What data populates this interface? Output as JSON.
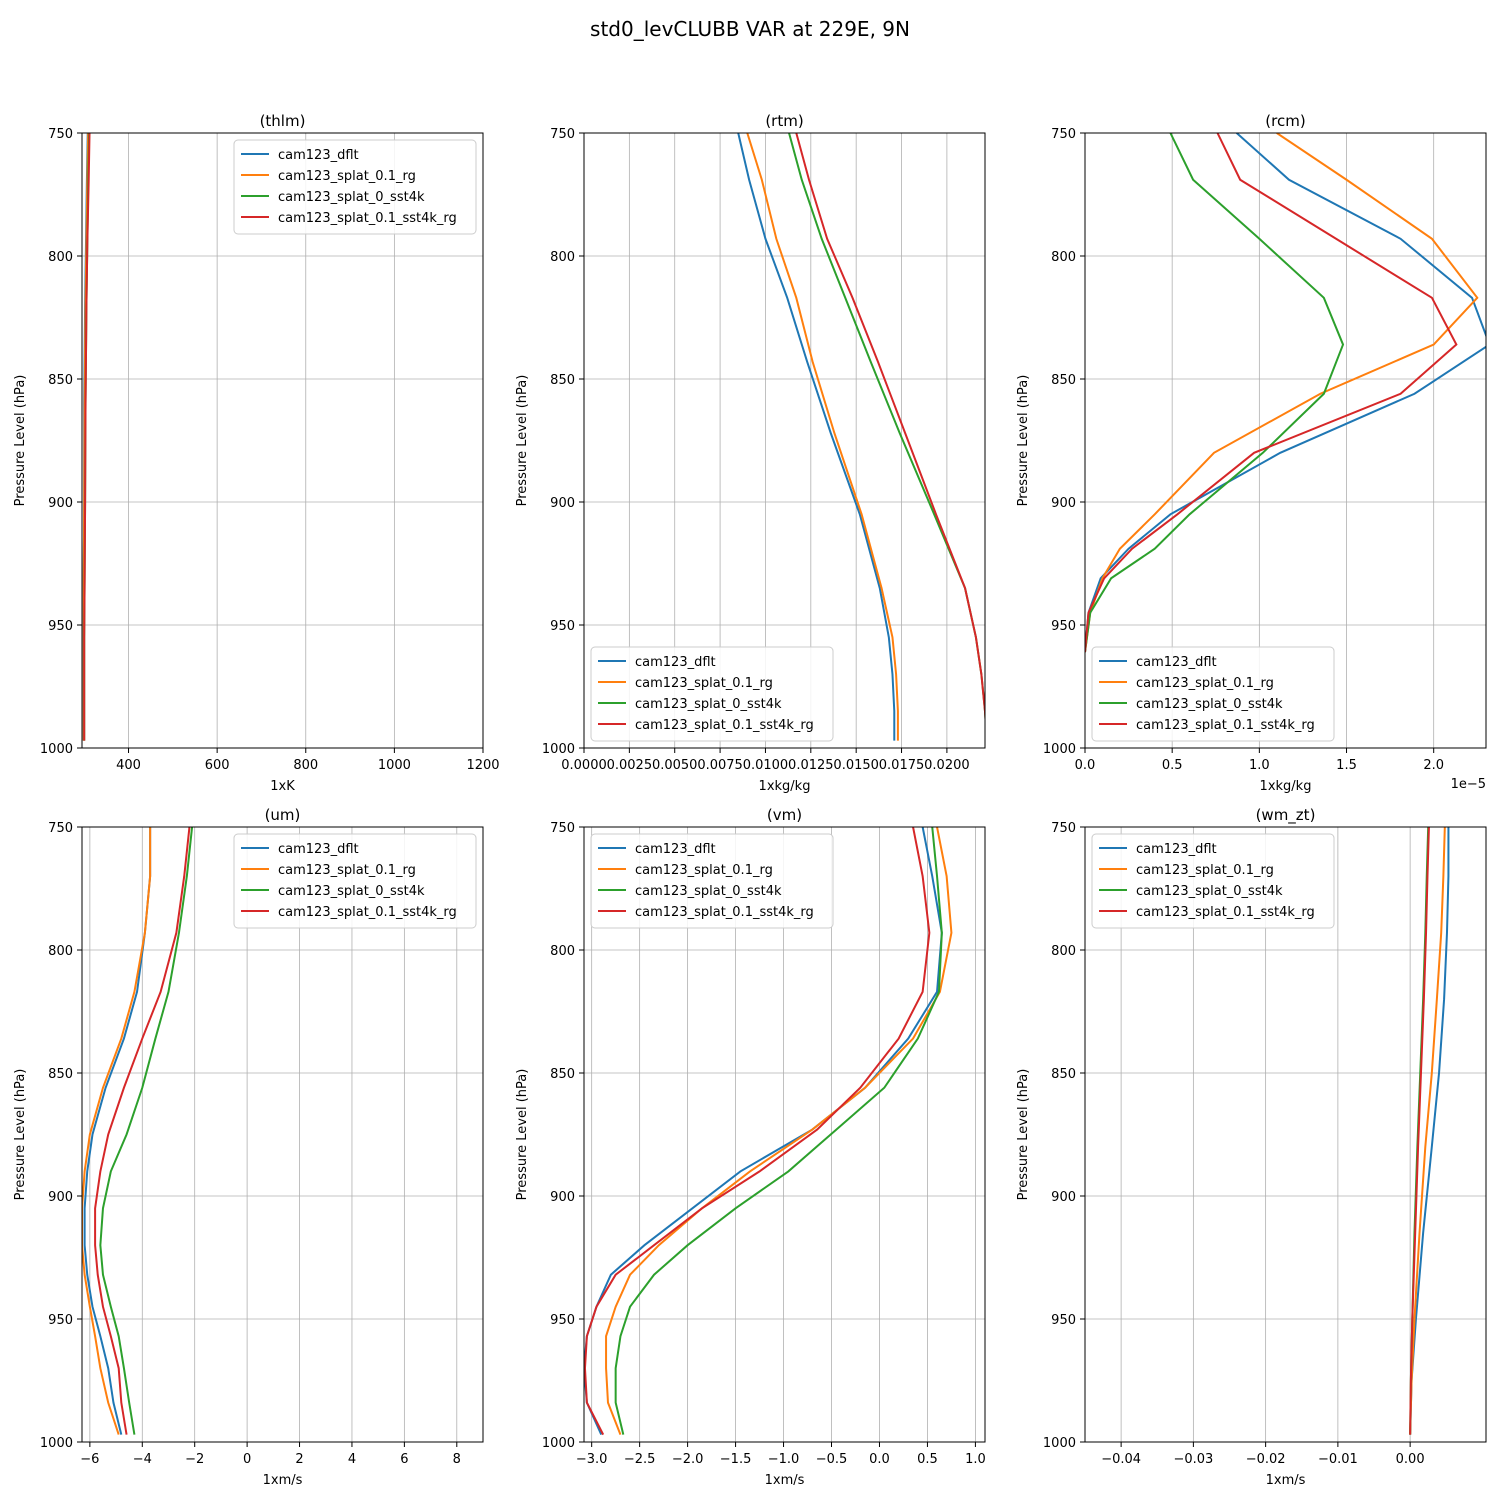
{
  "figure": {
    "suptitle": "std0_levCLUBB VAR at 229E, 9N"
  },
  "series_colors": [
    "#1f77b4",
    "#ff7f0e",
    "#2ca02c",
    "#d62728"
  ],
  "chart_data": [
    {
      "type": "line",
      "title": "(thlm)",
      "xlabel": "1xK",
      "ylabel": "Pressure Level (hPa)",
      "xlim": [
        295,
        1200
      ],
      "ylim": [
        1000,
        750
      ],
      "xticks": [
        400,
        600,
        800,
        1000,
        1200
      ],
      "xtick_labels": [
        "400",
        "600",
        "800",
        "1000",
        "1200"
      ],
      "yticks": [
        750,
        800,
        850,
        900,
        950,
        1000
      ],
      "ytick_labels": [
        "750",
        "800",
        "850",
        "900",
        "950",
        "1000"
      ],
      "offset_text": "",
      "grid": true,
      "legend": "upper right",
      "series": [
        {
          "name": "cam123_dflt",
          "x": [
            308,
            306,
            304,
            302,
            300,
            300,
            299,
            299,
            299,
            299
          ],
          "y": [
            750,
            770,
            795,
            820,
            860,
            900,
            930,
            955,
            980,
            997
          ]
        },
        {
          "name": "cam123_splat_0.1_rg",
          "x": [
            309,
            307,
            305,
            303,
            301,
            300,
            299,
            299,
            299,
            299
          ],
          "y": [
            750,
            770,
            795,
            820,
            860,
            900,
            930,
            955,
            980,
            997
          ]
        },
        {
          "name": "cam123_splat_0_sst4k",
          "x": [
            311,
            309,
            307,
            305,
            303,
            302,
            301,
            300,
            300,
            300
          ],
          "y": [
            750,
            770,
            795,
            820,
            860,
            900,
            930,
            955,
            980,
            997
          ]
        },
        {
          "name": "cam123_splat_0.1_sst4k_rg",
          "x": [
            312,
            310,
            307,
            305,
            303,
            302,
            301,
            300,
            300,
            300
          ],
          "y": [
            750,
            770,
            795,
            820,
            860,
            900,
            930,
            955,
            980,
            997
          ]
        }
      ]
    },
    {
      "type": "line",
      "title": "(rtm)",
      "xlabel": "1xkg/kg",
      "ylabel": "Pressure Level (hPa)",
      "xlim": [
        0,
        0.0221
      ],
      "ylim": [
        1000,
        750
      ],
      "xticks": [
        0,
        0.0025,
        0.005,
        0.0075,
        0.01,
        0.0125,
        0.015,
        0.0175,
        0.02
      ],
      "xtick_labels": [
        "0.0000",
        "0.0025",
        "0.0050",
        "0.0075",
        "0.0100",
        "0.0125",
        "0.0150",
        "0.0175",
        "0.0200"
      ],
      "yticks": [
        750,
        800,
        850,
        900,
        950,
        1000
      ],
      "ytick_labels": [
        "750",
        "800",
        "850",
        "900",
        "950",
        "1000"
      ],
      "offset_text": "",
      "grid": true,
      "legend": "lower left",
      "series": [
        {
          "name": "cam123_dflt",
          "x": [
            0.0085,
            0.0091,
            0.01,
            0.0112,
            0.0123,
            0.0136,
            0.0152,
            0.0163,
            0.0168,
            0.017,
            0.0171,
            0.0171
          ],
          "y": [
            750,
            769,
            793,
            817,
            843,
            872,
            905,
            935,
            955,
            970,
            985,
            997
          ]
        },
        {
          "name": "cam123_splat_0.1_rg",
          "x": [
            0.009,
            0.0098,
            0.0106,
            0.0117,
            0.0126,
            0.0138,
            0.0153,
            0.0164,
            0.017,
            0.0172,
            0.0173,
            0.0173
          ],
          "y": [
            750,
            769,
            793,
            817,
            843,
            872,
            905,
            935,
            955,
            970,
            985,
            997
          ]
        },
        {
          "name": "cam123_splat_0_sst4k",
          "x": [
            0.0113,
            0.012,
            0.0131,
            0.0144,
            0.0158,
            0.0174,
            0.0193,
            0.021,
            0.0216,
            0.0219,
            0.0221,
            0.0222
          ],
          "y": [
            750,
            769,
            793,
            817,
            843,
            872,
            905,
            935,
            955,
            970,
            985,
            997
          ]
        },
        {
          "name": "cam123_splat_0.1_sst4k_rg",
          "x": [
            0.0117,
            0.0124,
            0.0134,
            0.0148,
            0.0162,
            0.0177,
            0.0194,
            0.021,
            0.0216,
            0.0219,
            0.0221,
            0.0222
          ],
          "y": [
            750,
            769,
            793,
            817,
            843,
            872,
            905,
            935,
            955,
            970,
            985,
            997
          ]
        }
      ]
    },
    {
      "type": "line",
      "title": "(rcm)",
      "xlabel": "1xkg/kg",
      "ylabel": "Pressure Level (hPa)",
      "xlim": [
        0,
        2.3
      ],
      "ylim": [
        1000,
        750
      ],
      "xticks": [
        0,
        0.5,
        1.0,
        1.5,
        2.0
      ],
      "xtick_labels": [
        "0.0",
        "0.5",
        "1.0",
        "1.5",
        "2.0"
      ],
      "yticks": [
        750,
        800,
        850,
        900,
        950,
        1000
      ],
      "ytick_labels": [
        "750",
        "800",
        "850",
        "900",
        "950",
        "1000"
      ],
      "offset_text": "1e−5",
      "grid": true,
      "legend": "lower left",
      "series": [
        {
          "name": "cam123_dflt",
          "x": [
            0.87,
            1.17,
            1.81,
            2.22,
            2.32,
            1.89,
            1.12,
            0.49,
            0.25,
            0.09,
            0.02,
            0.0
          ],
          "y": [
            750,
            769,
            793,
            817,
            836,
            856,
            880,
            905,
            919,
            931,
            945,
            961
          ]
        },
        {
          "name": "cam123_splat_0.1_rg",
          "x": [
            1.1,
            1.5,
            1.99,
            2.25,
            2.0,
            1.35,
            0.74,
            0.4,
            0.2,
            0.1,
            0.03,
            0.0
          ],
          "y": [
            750,
            769,
            793,
            817,
            836,
            856,
            880,
            905,
            919,
            931,
            945,
            961
          ]
        },
        {
          "name": "cam123_splat_0_sst4k",
          "x": [
            0.49,
            0.62,
            1.0,
            1.37,
            1.48,
            1.37,
            1.02,
            0.6,
            0.4,
            0.15,
            0.03,
            0.0
          ],
          "y": [
            750,
            769,
            793,
            817,
            836,
            856,
            880,
            905,
            919,
            931,
            945,
            961
          ]
        },
        {
          "name": "cam123_splat_0.1_sst4k_rg",
          "x": [
            0.76,
            0.89,
            1.44,
            1.99,
            2.13,
            1.81,
            0.97,
            0.53,
            0.27,
            0.11,
            0.02,
            0.0
          ],
          "y": [
            750,
            769,
            793,
            817,
            836,
            856,
            880,
            905,
            919,
            931,
            945,
            961
          ]
        }
      ]
    },
    {
      "type": "line",
      "title": "(um)",
      "xlabel": "1xm/s",
      "ylabel": "Pressure Level (hPa)",
      "xlim": [
        -6.3,
        9
      ],
      "ylim": [
        1000,
        750
      ],
      "xticks": [
        -6,
        -4,
        -2,
        0,
        2,
        4,
        6,
        8
      ],
      "xtick_labels": [
        "−6",
        "−4",
        "−2",
        "0",
        "2",
        "4",
        "6",
        "8"
      ],
      "yticks": [
        750,
        800,
        850,
        900,
        950,
        1000
      ],
      "ytick_labels": [
        "750",
        "800",
        "850",
        "900",
        "950",
        "1000"
      ],
      "offset_text": "",
      "grid": true,
      "legend": "upper right",
      "series": [
        {
          "name": "cam123_dflt",
          "x": [
            -3.7,
            -3.7,
            -3.9,
            -4.2,
            -4.7,
            -5.4,
            -5.9,
            -6.1,
            -6.2,
            -6.2,
            -6.1,
            -5.9,
            -5.6,
            -5.3,
            -5.1,
            -4.8
          ],
          "y": [
            750,
            770,
            793,
            817,
            836,
            856,
            875,
            890,
            905,
            920,
            932,
            945,
            957,
            970,
            984,
            997
          ]
        },
        {
          "name": "cam123_splat_0.1_rg",
          "x": [
            -3.7,
            -3.7,
            -3.9,
            -4.3,
            -4.8,
            -5.5,
            -6.0,
            -6.2,
            -6.3,
            -6.3,
            -6.2,
            -6.0,
            -5.8,
            -5.6,
            -5.3,
            -4.9
          ],
          "y": [
            750,
            770,
            793,
            817,
            836,
            856,
            875,
            890,
            905,
            920,
            932,
            945,
            957,
            970,
            984,
            997
          ]
        },
        {
          "name": "cam123_splat_0_sst4k",
          "x": [
            -2.1,
            -2.3,
            -2.6,
            -3.0,
            -3.5,
            -4.0,
            -4.6,
            -5.2,
            -5.5,
            -5.6,
            -5.5,
            -5.2,
            -4.9,
            -4.7,
            -4.5,
            -4.3
          ],
          "y": [
            750,
            770,
            793,
            817,
            836,
            856,
            875,
            890,
            905,
            920,
            932,
            945,
            957,
            970,
            984,
            997
          ]
        },
        {
          "name": "cam123_splat_0.1_sst4k_rg",
          "x": [
            -2.2,
            -2.4,
            -2.7,
            -3.3,
            -4.0,
            -4.7,
            -5.3,
            -5.6,
            -5.8,
            -5.8,
            -5.7,
            -5.5,
            -5.2,
            -4.9,
            -4.8,
            -4.6
          ],
          "y": [
            750,
            770,
            793,
            817,
            836,
            856,
            875,
            890,
            905,
            920,
            932,
            945,
            957,
            970,
            984,
            997
          ]
        }
      ]
    },
    {
      "type": "line",
      "title": "(vm)",
      "xlabel": "1xm/s",
      "ylabel": "Pressure Level (hPa)",
      "xlim": [
        -3.08,
        1.1
      ],
      "ylim": [
        1000,
        750
      ],
      "xticks": [
        -3.0,
        -2.5,
        -2.0,
        -1.5,
        -1.0,
        -0.5,
        0.0,
        0.5,
        1.0
      ],
      "xtick_labels": [
        "−3.0",
        "−2.5",
        "−2.0",
        "−1.5",
        "−1.0",
        "−0.5",
        "0.0",
        "0.5",
        "1.0"
      ],
      "yticks": [
        750,
        800,
        850,
        900,
        950,
        1000
      ],
      "ytick_labels": [
        "750",
        "800",
        "850",
        "900",
        "950",
        "1000"
      ],
      "offset_text": "",
      "grid": true,
      "legend": "upper left",
      "series": [
        {
          "name": "cam123_dflt",
          "x": [
            0.45,
            0.55,
            0.65,
            0.6,
            0.3,
            -0.15,
            -0.7,
            -1.45,
            -1.95,
            -2.45,
            -2.8,
            -2.95,
            -3.05,
            -3.08,
            -3.05,
            -2.9
          ],
          "y": [
            750,
            770,
            793,
            817,
            836,
            856,
            873,
            890,
            905,
            920,
            932,
            945,
            957,
            970,
            984,
            997
          ]
        },
        {
          "name": "cam123_splat_0.1_rg",
          "x": [
            0.6,
            0.7,
            0.75,
            0.63,
            0.35,
            -0.15,
            -0.7,
            -1.35,
            -1.85,
            -2.3,
            -2.6,
            -2.75,
            -2.85,
            -2.85,
            -2.83,
            -2.7
          ],
          "y": [
            750,
            770,
            793,
            817,
            836,
            856,
            873,
            890,
            905,
            920,
            932,
            945,
            957,
            970,
            984,
            997
          ]
        },
        {
          "name": "cam123_splat_0_sst4k",
          "x": [
            0.55,
            0.6,
            0.65,
            0.62,
            0.4,
            0.05,
            -0.45,
            -0.95,
            -1.5,
            -2.0,
            -2.35,
            -2.6,
            -2.7,
            -2.75,
            -2.75,
            -2.67
          ],
          "y": [
            750,
            770,
            793,
            817,
            836,
            856,
            873,
            890,
            905,
            920,
            932,
            945,
            957,
            970,
            984,
            997
          ]
        },
        {
          "name": "cam123_splat_0.1_sst4k_rg",
          "x": [
            0.35,
            0.45,
            0.52,
            0.45,
            0.2,
            -0.2,
            -0.65,
            -1.25,
            -1.85,
            -2.35,
            -2.75,
            -2.95,
            -3.05,
            -3.07,
            -3.05,
            -2.88
          ],
          "y": [
            750,
            770,
            793,
            817,
            836,
            856,
            873,
            890,
            905,
            920,
            932,
            945,
            957,
            970,
            984,
            997
          ]
        }
      ]
    },
    {
      "type": "line",
      "title": "(wm_zt)",
      "xlabel": "1xm/s",
      "ylabel": "Pressure Level (hPa)",
      "xlim": [
        -0.045,
        0.0105
      ],
      "ylim": [
        1000,
        750
      ],
      "xticks": [
        -0.04,
        -0.03,
        -0.02,
        -0.01,
        0.0
      ],
      "xtick_labels": [
        "−0.04",
        "−0.03",
        "−0.02",
        "−0.01",
        "0.00"
      ],
      "yticks": [
        750,
        800,
        850,
        900,
        950,
        1000
      ],
      "ytick_labels": [
        "750",
        "800",
        "850",
        "900",
        "950",
        "1000"
      ],
      "offset_text": "",
      "grid": true,
      "legend": "upper left",
      "series": [
        {
          "name": "cam123_dflt",
          "x": [
            0.0053,
            0.0053,
            0.0051,
            0.0047,
            0.004,
            0.003,
            0.0018,
            0.0008,
            0.0002,
            0.0
          ],
          "y": [
            750,
            770,
            793,
            820,
            850,
            880,
            915,
            950,
            975,
            997
          ]
        },
        {
          "name": "cam123_splat_0.1_rg",
          "x": [
            0.0048,
            0.0046,
            0.0043,
            0.0037,
            0.003,
            0.0021,
            0.0013,
            0.0006,
            0.0002,
            0.0
          ],
          "y": [
            750,
            770,
            793,
            820,
            850,
            880,
            915,
            950,
            975,
            997
          ]
        },
        {
          "name": "cam123_splat_0_sst4k",
          "x": [
            0.0025,
            0.0023,
            0.0021,
            0.0018,
            0.0014,
            0.001,
            0.0006,
            0.0003,
            0.0001,
            0.0
          ],
          "y": [
            750,
            770,
            793,
            820,
            850,
            880,
            915,
            950,
            975,
            997
          ]
        },
        {
          "name": "cam123_splat_0.1_sst4k_rg",
          "x": [
            0.0026,
            0.0024,
            0.0022,
            0.0019,
            0.0015,
            0.0011,
            0.0007,
            0.0003,
            0.0001,
            0.0
          ],
          "y": [
            750,
            770,
            793,
            820,
            850,
            880,
            915,
            950,
            975,
            997
          ]
        }
      ]
    }
  ]
}
